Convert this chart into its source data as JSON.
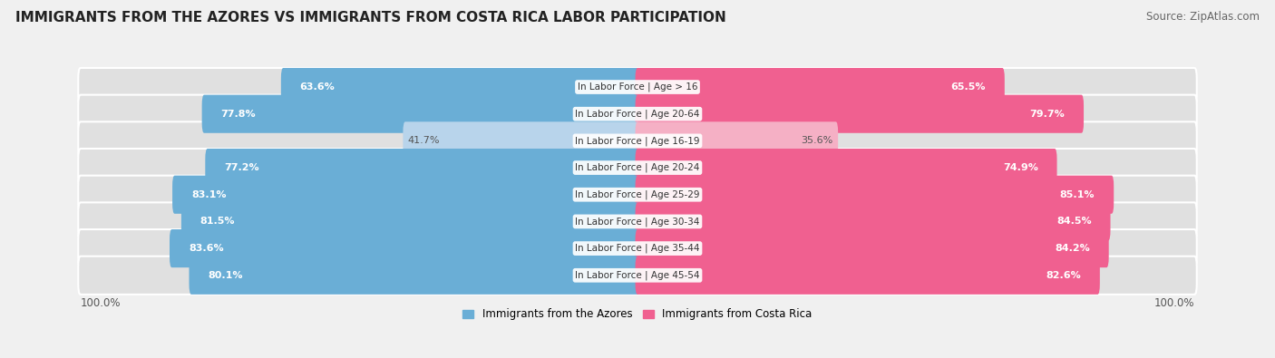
{
  "title": "IMMIGRANTS FROM THE AZORES VS IMMIGRANTS FROM COSTA RICA LABOR PARTICIPATION",
  "source": "Source: ZipAtlas.com",
  "categories": [
    "In Labor Force | Age > 16",
    "In Labor Force | Age 20-64",
    "In Labor Force | Age 16-19",
    "In Labor Force | Age 20-24",
    "In Labor Force | Age 25-29",
    "In Labor Force | Age 30-34",
    "In Labor Force | Age 35-44",
    "In Labor Force | Age 45-54"
  ],
  "azores_values": [
    63.6,
    77.8,
    41.7,
    77.2,
    83.1,
    81.5,
    83.6,
    80.1
  ],
  "costa_rica_values": [
    65.5,
    79.7,
    35.6,
    74.9,
    85.1,
    84.5,
    84.2,
    82.6
  ],
  "azores_color": "#6aaed6",
  "azores_color_light": "#b8d4eb",
  "costa_rica_color": "#f06090",
  "costa_rica_color_light": "#f5b0c5",
  "label_azores": "Immigrants from the Azores",
  "label_costa_rica": "Immigrants from Costa Rica",
  "bg_color": "#f0f0f0",
  "bar_bg_color": "#e0e0e0",
  "title_fontsize": 11,
  "source_fontsize": 8.5,
  "legend_fontsize": 8.5,
  "value_fontsize": 8,
  "category_fontsize": 7.5,
  "max_val": 100.0,
  "light_rows": [
    2
  ]
}
